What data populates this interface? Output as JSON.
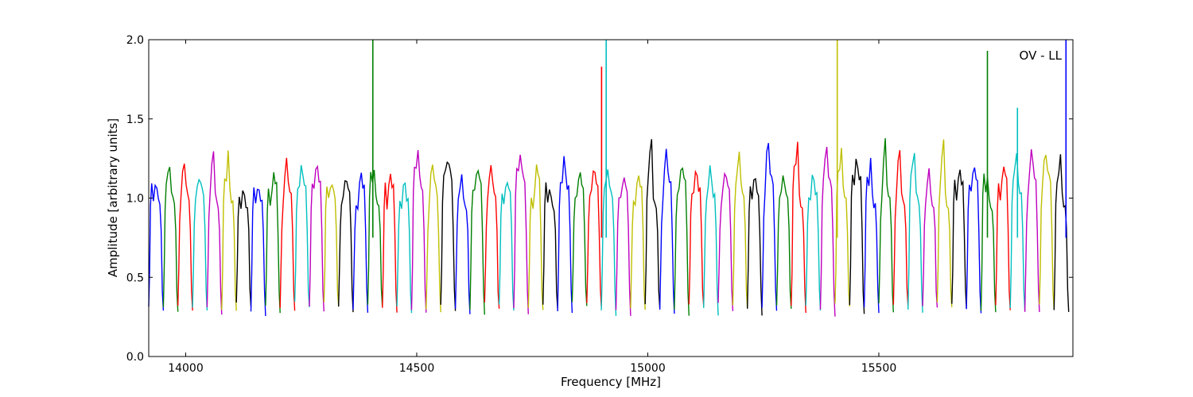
{
  "chart_data": {
    "type": "line",
    "title": "",
    "xlabel": "Frequency [MHz]",
    "ylabel": "Amplitude [arbitrary units]",
    "xlim": [
      13920,
      15920
    ],
    "ylim": [
      0.0,
      2.0
    ],
    "xticks": [
      14000,
      14500,
      15000,
      15500
    ],
    "yticks": [
      0.0,
      0.5,
      1.0,
      1.5,
      2.0
    ],
    "xtick_labels": [
      "14000",
      "14500",
      "15000",
      "15500"
    ],
    "ytick_labels": [
      "0.0",
      "0.5",
      "1.0",
      "1.5",
      "2.0"
    ],
    "annotation": "OV - LL",
    "grid": false,
    "legend": "none",
    "band_pattern": "repeating bandpass segments approx 32 MHz wide, minima approx 0.27, plateaus approx 1.1-1.35",
    "band_start": 13920,
    "band_width": 31.6,
    "band_count": 63,
    "colors": [
      "#0000ff",
      "#007f00",
      "#ff0000",
      "#00bfbf",
      "#bf00bf",
      "#bfbf00",
      "#000000"
    ],
    "spikes": [
      {
        "x": 14405,
        "y": 2.0,
        "color": "#007f00"
      },
      {
        "x": 14900,
        "y": 1.83,
        "color": "#ff0000"
      },
      {
        "x": 14910,
        "y": 2.0,
        "color": "#00bfbf"
      },
      {
        "x": 15410,
        "y": 2.0,
        "color": "#bfbf00"
      },
      {
        "x": 15735,
        "y": 1.93,
        "color": "#007f00"
      },
      {
        "x": 15800,
        "y": 1.57,
        "color": "#00bfbf"
      },
      {
        "x": 15905,
        "y": 2.0,
        "color": "#0000ff"
      }
    ]
  }
}
